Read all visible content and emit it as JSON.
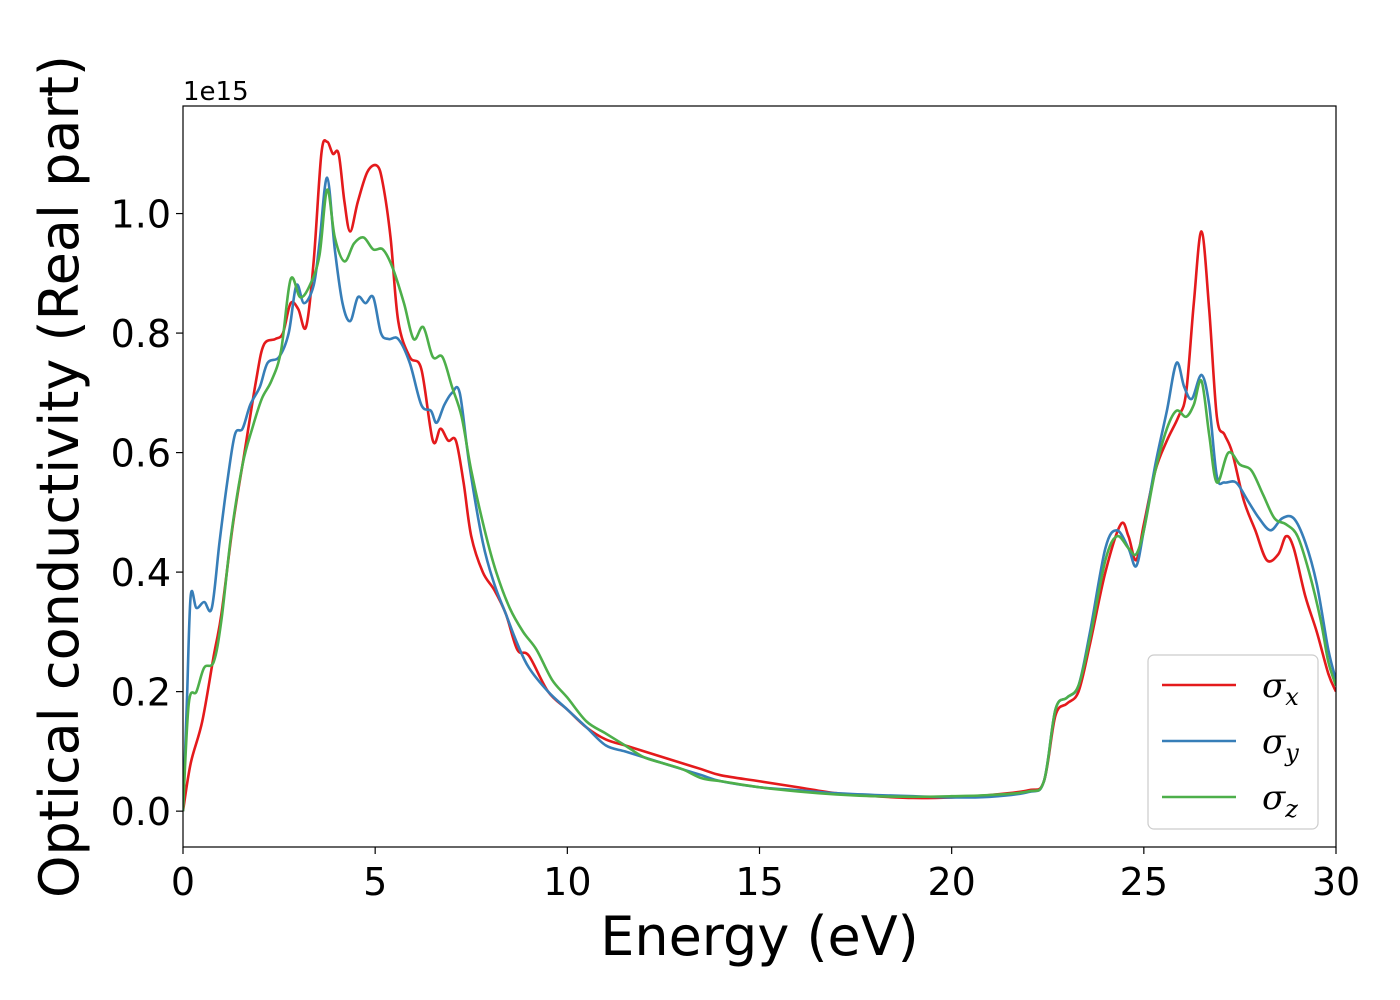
{
  "chart_data": {
    "type": "line",
    "title": "",
    "xlabel": "Energy (eV)",
    "ylabel": "Optical conductivity (Real part)",
    "y_offset_label": "1e15",
    "xlim": [
      0,
      30
    ],
    "ylim": [
      -0.06,
      1.18
    ],
    "x_ticks": [
      0,
      5,
      10,
      15,
      20,
      25,
      30
    ],
    "x_tick_labels": [
      "0",
      "5",
      "10",
      "15",
      "20",
      "25",
      "30"
    ],
    "y_ticks": [
      0.0,
      0.2,
      0.4,
      0.6,
      0.8,
      1.0
    ],
    "y_tick_labels": [
      "0.0",
      "0.2",
      "0.4",
      "0.6",
      "0.8",
      "1.0"
    ],
    "grid": false,
    "legend_position": "bottom-right",
    "series": [
      {
        "name": "σx",
        "symbol": "σ",
        "subscript": "x",
        "color": "#e41a1c",
        "points": [
          [
            0,
            0.0
          ],
          [
            0.2,
            0.08
          ],
          [
            0.5,
            0.15
          ],
          [
            0.8,
            0.26
          ],
          [
            1.0,
            0.33
          ],
          [
            1.3,
            0.48
          ],
          [
            1.6,
            0.6
          ],
          [
            1.9,
            0.72
          ],
          [
            2.1,
            0.78
          ],
          [
            2.4,
            0.79
          ],
          [
            2.6,
            0.8
          ],
          [
            2.8,
            0.85
          ],
          [
            3.0,
            0.84
          ],
          [
            3.2,
            0.81
          ],
          [
            3.4,
            0.92
          ],
          [
            3.6,
            1.1
          ],
          [
            3.75,
            1.12
          ],
          [
            3.9,
            1.1
          ],
          [
            4.05,
            1.1
          ],
          [
            4.2,
            1.02
          ],
          [
            4.35,
            0.97
          ],
          [
            4.55,
            1.02
          ],
          [
            4.8,
            1.07
          ],
          [
            5.05,
            1.08
          ],
          [
            5.2,
            1.05
          ],
          [
            5.4,
            0.96
          ],
          [
            5.6,
            0.82
          ],
          [
            5.9,
            0.76
          ],
          [
            6.2,
            0.74
          ],
          [
            6.5,
            0.62
          ],
          [
            6.7,
            0.64
          ],
          [
            6.9,
            0.62
          ],
          [
            7.1,
            0.62
          ],
          [
            7.3,
            0.55
          ],
          [
            7.5,
            0.46
          ],
          [
            7.8,
            0.4
          ],
          [
            8.1,
            0.37
          ],
          [
            8.4,
            0.33
          ],
          [
            8.7,
            0.27
          ],
          [
            9.0,
            0.26
          ],
          [
            9.5,
            0.2
          ],
          [
            10.0,
            0.17
          ],
          [
            10.5,
            0.14
          ],
          [
            11.0,
            0.12
          ],
          [
            11.5,
            0.11
          ],
          [
            12.0,
            0.1
          ],
          [
            12.5,
            0.09
          ],
          [
            13.0,
            0.08
          ],
          [
            13.5,
            0.07
          ],
          [
            14.0,
            0.06
          ],
          [
            15.0,
            0.05
          ],
          [
            16.0,
            0.04
          ],
          [
            17.0,
            0.03
          ],
          [
            18.0,
            0.025
          ],
          [
            19.0,
            0.022
          ],
          [
            20.0,
            0.023
          ],
          [
            21.0,
            0.027
          ],
          [
            22.0,
            0.035
          ],
          [
            22.4,
            0.05
          ],
          [
            22.7,
            0.16
          ],
          [
            23.0,
            0.18
          ],
          [
            23.3,
            0.2
          ],
          [
            23.6,
            0.28
          ],
          [
            24.0,
            0.4
          ],
          [
            24.4,
            0.48
          ],
          [
            24.6,
            0.46
          ],
          [
            24.8,
            0.42
          ],
          [
            25.0,
            0.48
          ],
          [
            25.3,
            0.57
          ],
          [
            25.6,
            0.62
          ],
          [
            25.9,
            0.66
          ],
          [
            26.1,
            0.7
          ],
          [
            26.3,
            0.85
          ],
          [
            26.5,
            0.97
          ],
          [
            26.7,
            0.84
          ],
          [
            26.9,
            0.66
          ],
          [
            27.1,
            0.63
          ],
          [
            27.3,
            0.6
          ],
          [
            27.6,
            0.52
          ],
          [
            27.9,
            0.47
          ],
          [
            28.2,
            0.42
          ],
          [
            28.5,
            0.43
          ],
          [
            28.7,
            0.46
          ],
          [
            28.9,
            0.44
          ],
          [
            29.2,
            0.36
          ],
          [
            29.5,
            0.3
          ],
          [
            29.8,
            0.23
          ],
          [
            30.0,
            0.2
          ]
        ]
      },
      {
        "name": "σy",
        "symbol": "σ",
        "subscript": "y",
        "color": "#377eb8",
        "points": [
          [
            0,
            0.0
          ],
          [
            0.1,
            0.18
          ],
          [
            0.2,
            0.36
          ],
          [
            0.35,
            0.34
          ],
          [
            0.55,
            0.35
          ],
          [
            0.75,
            0.34
          ],
          [
            0.95,
            0.45
          ],
          [
            1.15,
            0.55
          ],
          [
            1.35,
            0.63
          ],
          [
            1.55,
            0.64
          ],
          [
            1.75,
            0.68
          ],
          [
            2.0,
            0.71
          ],
          [
            2.2,
            0.75
          ],
          [
            2.5,
            0.76
          ],
          [
            2.75,
            0.8
          ],
          [
            2.95,
            0.88
          ],
          [
            3.15,
            0.85
          ],
          [
            3.4,
            0.88
          ],
          [
            3.55,
            0.95
          ],
          [
            3.75,
            1.06
          ],
          [
            3.95,
            0.94
          ],
          [
            4.15,
            0.85
          ],
          [
            4.35,
            0.82
          ],
          [
            4.55,
            0.86
          ],
          [
            4.75,
            0.85
          ],
          [
            4.95,
            0.86
          ],
          [
            5.15,
            0.8
          ],
          [
            5.35,
            0.79
          ],
          [
            5.6,
            0.79
          ],
          [
            5.9,
            0.75
          ],
          [
            6.2,
            0.68
          ],
          [
            6.45,
            0.67
          ],
          [
            6.6,
            0.65
          ],
          [
            6.8,
            0.68
          ],
          [
            7.0,
            0.7
          ],
          [
            7.2,
            0.7
          ],
          [
            7.45,
            0.58
          ],
          [
            7.8,
            0.45
          ],
          [
            8.1,
            0.38
          ],
          [
            8.4,
            0.33
          ],
          [
            8.7,
            0.28
          ],
          [
            9.0,
            0.24
          ],
          [
            9.5,
            0.2
          ],
          [
            10.0,
            0.17
          ],
          [
            10.5,
            0.14
          ],
          [
            11.0,
            0.11
          ],
          [
            11.5,
            0.1
          ],
          [
            12.0,
            0.09
          ],
          [
            12.5,
            0.08
          ],
          [
            13.0,
            0.07
          ],
          [
            13.5,
            0.06
          ],
          [
            14.0,
            0.05
          ],
          [
            15.0,
            0.04
          ],
          [
            16.0,
            0.035
          ],
          [
            17.0,
            0.03
          ],
          [
            18.0,
            0.027
          ],
          [
            19.0,
            0.025
          ],
          [
            20.0,
            0.023
          ],
          [
            21.0,
            0.024
          ],
          [
            22.0,
            0.032
          ],
          [
            22.4,
            0.05
          ],
          [
            22.7,
            0.17
          ],
          [
            23.0,
            0.19
          ],
          [
            23.3,
            0.21
          ],
          [
            23.6,
            0.3
          ],
          [
            24.0,
            0.44
          ],
          [
            24.3,
            0.47
          ],
          [
            24.6,
            0.44
          ],
          [
            24.8,
            0.41
          ],
          [
            25.0,
            0.47
          ],
          [
            25.3,
            0.58
          ],
          [
            25.6,
            0.67
          ],
          [
            25.85,
            0.75
          ],
          [
            26.05,
            0.71
          ],
          [
            26.25,
            0.69
          ],
          [
            26.5,
            0.73
          ],
          [
            26.7,
            0.68
          ],
          [
            26.9,
            0.56
          ],
          [
            27.1,
            0.55
          ],
          [
            27.4,
            0.55
          ],
          [
            27.7,
            0.52
          ],
          [
            28.0,
            0.49
          ],
          [
            28.3,
            0.47
          ],
          [
            28.6,
            0.49
          ],
          [
            28.9,
            0.49
          ],
          [
            29.2,
            0.45
          ],
          [
            29.5,
            0.38
          ],
          [
            29.8,
            0.27
          ],
          [
            30.0,
            0.22
          ]
        ]
      },
      {
        "name": "σz",
        "symbol": "σ",
        "subscript": "z",
        "color": "#4daf4a",
        "points": [
          [
            0,
            0.0
          ],
          [
            0.15,
            0.18
          ],
          [
            0.35,
            0.2
          ],
          [
            0.55,
            0.24
          ],
          [
            0.8,
            0.25
          ],
          [
            1.0,
            0.32
          ],
          [
            1.25,
            0.46
          ],
          [
            1.55,
            0.58
          ],
          [
            1.8,
            0.64
          ],
          [
            2.05,
            0.69
          ],
          [
            2.3,
            0.72
          ],
          [
            2.55,
            0.77
          ],
          [
            2.8,
            0.89
          ],
          [
            3.05,
            0.86
          ],
          [
            3.3,
            0.88
          ],
          [
            3.55,
            0.93
          ],
          [
            3.75,
            1.04
          ],
          [
            3.95,
            0.96
          ],
          [
            4.2,
            0.92
          ],
          [
            4.45,
            0.95
          ],
          [
            4.7,
            0.96
          ],
          [
            4.95,
            0.94
          ],
          [
            5.2,
            0.94
          ],
          [
            5.45,
            0.91
          ],
          [
            5.75,
            0.85
          ],
          [
            6.0,
            0.79
          ],
          [
            6.25,
            0.81
          ],
          [
            6.5,
            0.76
          ],
          [
            6.75,
            0.76
          ],
          [
            7.0,
            0.71
          ],
          [
            7.25,
            0.66
          ],
          [
            7.5,
            0.57
          ],
          [
            7.85,
            0.47
          ],
          [
            8.15,
            0.4
          ],
          [
            8.5,
            0.34
          ],
          [
            8.85,
            0.3
          ],
          [
            9.2,
            0.27
          ],
          [
            9.6,
            0.22
          ],
          [
            10.0,
            0.19
          ],
          [
            10.5,
            0.15
          ],
          [
            11.0,
            0.13
          ],
          [
            11.5,
            0.11
          ],
          [
            12.0,
            0.09
          ],
          [
            12.5,
            0.08
          ],
          [
            13.0,
            0.07
          ],
          [
            13.5,
            0.055
          ],
          [
            14.0,
            0.05
          ],
          [
            15.0,
            0.04
          ],
          [
            16.0,
            0.033
          ],
          [
            17.0,
            0.028
          ],
          [
            18.0,
            0.025
          ],
          [
            19.0,
            0.024
          ],
          [
            20.0,
            0.025
          ],
          [
            21.0,
            0.027
          ],
          [
            22.0,
            0.033
          ],
          [
            22.4,
            0.05
          ],
          [
            22.7,
            0.17
          ],
          [
            23.0,
            0.19
          ],
          [
            23.3,
            0.21
          ],
          [
            23.6,
            0.29
          ],
          [
            24.0,
            0.42
          ],
          [
            24.3,
            0.46
          ],
          [
            24.6,
            0.44
          ],
          [
            24.8,
            0.43
          ],
          [
            25.0,
            0.47
          ],
          [
            25.3,
            0.57
          ],
          [
            25.6,
            0.64
          ],
          [
            25.85,
            0.67
          ],
          [
            26.1,
            0.66
          ],
          [
            26.3,
            0.68
          ],
          [
            26.5,
            0.72
          ],
          [
            26.7,
            0.63
          ],
          [
            26.9,
            0.55
          ],
          [
            27.2,
            0.6
          ],
          [
            27.5,
            0.58
          ],
          [
            27.8,
            0.57
          ],
          [
            28.1,
            0.53
          ],
          [
            28.4,
            0.49
          ],
          [
            28.7,
            0.48
          ],
          [
            29.0,
            0.46
          ],
          [
            29.3,
            0.4
          ],
          [
            29.6,
            0.32
          ],
          [
            29.8,
            0.25
          ],
          [
            30.0,
            0.21
          ]
        ]
      }
    ]
  }
}
